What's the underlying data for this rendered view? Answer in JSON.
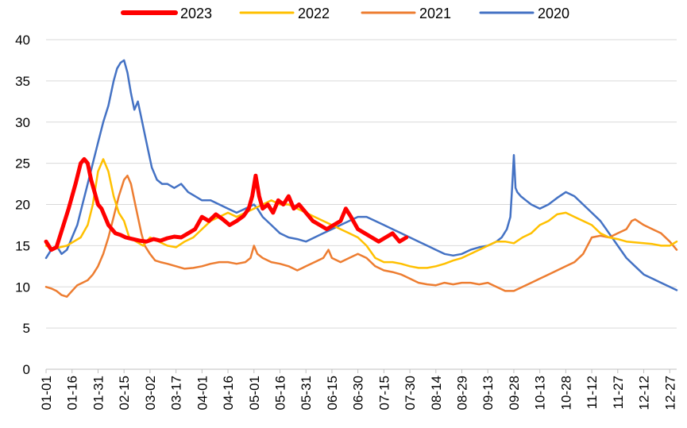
{
  "chart_data": {
    "type": "line",
    "title": "",
    "xlabel": "",
    "ylabel": "",
    "ylim": [
      0,
      40
    ],
    "y_ticks": [
      0,
      5,
      10,
      15,
      20,
      25,
      30,
      35,
      40
    ],
    "x_domain": [
      0,
      364
    ],
    "grid": "horizontal",
    "legend_position": "top",
    "x_ticks": [
      {
        "label": "01-01",
        "day": 0
      },
      {
        "label": "01-16",
        "day": 15
      },
      {
        "label": "01-31",
        "day": 30
      },
      {
        "label": "02-15",
        "day": 45
      },
      {
        "label": "03-02",
        "day": 60
      },
      {
        "label": "03-17",
        "day": 75
      },
      {
        "label": "04-01",
        "day": 90
      },
      {
        "label": "04-16",
        "day": 105
      },
      {
        "label": "05-01",
        "day": 120
      },
      {
        "label": "05-16",
        "day": 135
      },
      {
        "label": "05-31",
        "day": 150
      },
      {
        "label": "06-15",
        "day": 165
      },
      {
        "label": "06-30",
        "day": 180
      },
      {
        "label": "07-15",
        "day": 195
      },
      {
        "label": "07-30",
        "day": 210
      },
      {
        "label": "08-14",
        "day": 225
      },
      {
        "label": "08-29",
        "day": 240
      },
      {
        "label": "09-13",
        "day": 255
      },
      {
        "label": "09-28",
        "day": 270
      },
      {
        "label": "10-13",
        "day": 285
      },
      {
        "label": "10-28",
        "day": 300
      },
      {
        "label": "11-12",
        "day": 315
      },
      {
        "label": "11-27",
        "day": 330
      },
      {
        "label": "12-12",
        "day": 345
      },
      {
        "label": "12-27",
        "day": 360
      }
    ],
    "series": [
      {
        "name": "2023",
        "color": "#FF0000",
        "width": 5,
        "x": [
          0,
          3,
          6,
          9,
          13,
          17,
          20,
          22,
          24,
          26,
          28,
          30,
          32,
          34,
          36,
          38,
          40,
          43,
          46,
          50,
          54,
          58,
          62,
          66,
          70,
          74,
          78,
          82,
          86,
          90,
          94,
          98,
          102,
          106,
          110,
          114,
          117,
          119,
          121,
          123,
          125,
          128,
          131,
          134,
          137,
          140,
          143,
          146,
          150,
          154,
          158,
          162,
          166,
          170,
          173,
          176,
          180,
          184,
          188,
          192,
          196,
          200,
          204,
          208
        ],
        "y": [
          15.5,
          14.5,
          14.8,
          16.8,
          19.5,
          22.5,
          25.0,
          25.5,
          25.0,
          23.0,
          21.5,
          20.0,
          19.5,
          18.5,
          17.5,
          17.0,
          16.5,
          16.3,
          16.0,
          15.8,
          15.6,
          15.5,
          15.8,
          15.6,
          15.9,
          16.1,
          16.0,
          16.5,
          17.0,
          18.5,
          18.0,
          18.8,
          18.2,
          17.5,
          18.0,
          18.6,
          19.5,
          21.0,
          23.5,
          21.0,
          19.5,
          20.0,
          19.0,
          20.5,
          20.0,
          21.0,
          19.5,
          20.0,
          19.0,
          18.0,
          17.5,
          17.0,
          17.5,
          18.0,
          19.5,
          18.5,
          17.0,
          16.5,
          16.0,
          15.5,
          16.0,
          16.5,
          15.5,
          16.0
        ]
      },
      {
        "name": "2022",
        "color": "#FFC000",
        "width": 2.5,
        "x": [
          0,
          4,
          8,
          12,
          16,
          20,
          24,
          27,
          30,
          33,
          36,
          39,
          42,
          45,
          48,
          52,
          56,
          60,
          65,
          70,
          75,
          80,
          85,
          90,
          95,
          100,
          105,
          110,
          115,
          120,
          125,
          130,
          135,
          140,
          145,
          150,
          155,
          160,
          165,
          170,
          175,
          180,
          185,
          190,
          195,
          200,
          205,
          210,
          215,
          220,
          225,
          230,
          235,
          240,
          245,
          250,
          255,
          260,
          265,
          270,
          275,
          280,
          285,
          290,
          295,
          300,
          305,
          310,
          315,
          320,
          325,
          330,
          335,
          340,
          345,
          350,
          355,
          360,
          364
        ],
        "y": [
          15.0,
          14.6,
          14.8,
          15.0,
          15.5,
          16.0,
          17.5,
          20.0,
          24.0,
          25.5,
          24.0,
          21.0,
          19.0,
          18.0,
          16.0,
          15.5,
          15.0,
          16.0,
          15.5,
          15.0,
          14.8,
          15.5,
          16.0,
          17.0,
          18.0,
          18.5,
          19.0,
          18.5,
          19.0,
          19.5,
          20.0,
          20.5,
          20.0,
          20.0,
          19.5,
          19.0,
          18.5,
          18.0,
          17.5,
          17.0,
          16.5,
          16.0,
          15.0,
          13.5,
          13.0,
          13.0,
          12.8,
          12.5,
          12.3,
          12.3,
          12.5,
          12.8,
          13.2,
          13.5,
          14.0,
          14.5,
          15.0,
          15.5,
          15.5,
          15.3,
          16.0,
          16.5,
          17.5,
          18.0,
          18.8,
          19.0,
          18.5,
          18.0,
          17.5,
          16.5,
          16.0,
          15.8,
          15.5,
          15.4,
          15.3,
          15.2,
          15.0,
          15.0,
          15.5
        ]
      },
      {
        "name": "2021",
        "color": "#ED7D31",
        "width": 2.5,
        "x": [
          0,
          3,
          6,
          9,
          12,
          15,
          18,
          21,
          24,
          27,
          30,
          33,
          36,
          39,
          42,
          45,
          47,
          49,
          51,
          53,
          55,
          57,
          60,
          63,
          66,
          70,
          75,
          80,
          85,
          90,
          95,
          100,
          105,
          110,
          115,
          118,
          120,
          122,
          125,
          130,
          135,
          140,
          145,
          150,
          155,
          160,
          163,
          165,
          170,
          175,
          180,
          185,
          190,
          195,
          200,
          205,
          210,
          215,
          220,
          225,
          230,
          235,
          240,
          245,
          250,
          255,
          260,
          265,
          270,
          275,
          280,
          285,
          290,
          295,
          300,
          305,
          310,
          315,
          320,
          325,
          330,
          335,
          338,
          340,
          345,
          350,
          355,
          360,
          364
        ],
        "y": [
          10.0,
          9.8,
          9.5,
          9.0,
          8.8,
          9.5,
          10.2,
          10.5,
          10.8,
          11.5,
          12.5,
          14.0,
          16.0,
          18.5,
          21.0,
          23.0,
          23.5,
          22.5,
          20.5,
          18.5,
          16.5,
          15.0,
          14.0,
          13.2,
          13.0,
          12.8,
          12.5,
          12.2,
          12.3,
          12.5,
          12.8,
          13.0,
          13.0,
          12.8,
          13.0,
          13.5,
          15.0,
          14.0,
          13.5,
          13.0,
          12.8,
          12.5,
          12.0,
          12.5,
          13.0,
          13.5,
          14.5,
          13.5,
          13.0,
          13.5,
          14.0,
          13.5,
          12.5,
          12.0,
          11.8,
          11.5,
          11.0,
          10.5,
          10.3,
          10.2,
          10.5,
          10.3,
          10.5,
          10.5,
          10.3,
          10.5,
          10.0,
          9.5,
          9.5,
          10.0,
          10.5,
          11.0,
          11.5,
          12.0,
          12.5,
          13.0,
          14.0,
          16.0,
          16.2,
          16.0,
          16.5,
          17.0,
          18.0,
          18.2,
          17.5,
          17.0,
          16.5,
          15.5,
          14.5
        ]
      },
      {
        "name": "2020",
        "color": "#4472C4",
        "width": 2.5,
        "x": [
          0,
          3,
          6,
          9,
          12,
          15,
          18,
          21,
          24,
          27,
          30,
          33,
          36,
          39,
          41,
          43,
          45,
          47,
          49,
          51,
          53,
          55,
          57,
          59,
          61,
          64,
          67,
          70,
          74,
          78,
          82,
          86,
          90,
          95,
          100,
          105,
          110,
          115,
          118,
          120,
          122,
          125,
          130,
          135,
          140,
          145,
          150,
          155,
          160,
          165,
          170,
          175,
          180,
          185,
          190,
          195,
          200,
          205,
          210,
          215,
          220,
          225,
          230,
          235,
          240,
          245,
          250,
          255,
          260,
          263,
          266,
          268,
          269,
          270,
          271,
          272,
          274,
          277,
          280,
          285,
          290,
          295,
          300,
          305,
          310,
          315,
          320,
          325,
          330,
          335,
          340,
          345,
          350,
          355,
          360,
          364
        ],
        "y": [
          13.5,
          14.5,
          15.0,
          14.0,
          14.5,
          16.0,
          17.5,
          20.0,
          22.5,
          25.0,
          27.5,
          30.0,
          32.0,
          35.0,
          36.5,
          37.2,
          37.5,
          36.0,
          33.5,
          31.5,
          32.5,
          30.5,
          28.5,
          26.5,
          24.5,
          23.0,
          22.5,
          22.5,
          22.0,
          22.5,
          21.5,
          21.0,
          20.5,
          20.5,
          20.0,
          19.5,
          19.0,
          19.5,
          19.8,
          20.0,
          19.5,
          18.5,
          17.5,
          16.5,
          16.0,
          15.8,
          15.5,
          16.0,
          16.5,
          17.0,
          17.5,
          18.0,
          18.5,
          18.5,
          18.0,
          17.5,
          17.0,
          16.5,
          16.0,
          15.5,
          15.0,
          14.5,
          14.0,
          13.8,
          14.0,
          14.5,
          14.8,
          15.0,
          15.5,
          16.0,
          17.0,
          18.5,
          22.0,
          26.0,
          22.0,
          21.5,
          21.0,
          20.5,
          20.0,
          19.5,
          20.0,
          20.8,
          21.5,
          21.0,
          20.0,
          19.0,
          18.0,
          16.5,
          15.0,
          13.5,
          12.5,
          11.5,
          11.0,
          10.5,
          10.0,
          9.6
        ]
      }
    ]
  }
}
